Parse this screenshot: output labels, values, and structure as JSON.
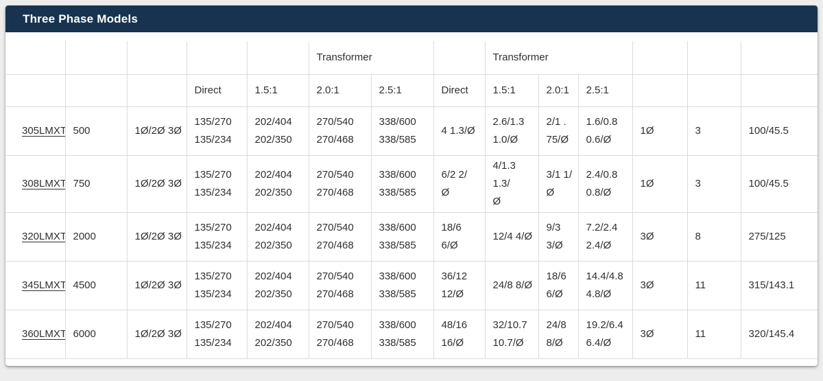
{
  "panel": {
    "title": "Three Phase Models"
  },
  "colors": {
    "header_bg": "#17334f",
    "header_text": "#ffffff",
    "card_bg": "#ffffff",
    "page_bg": "#ededed",
    "table_border": "#dcdcdc",
    "table_text": "#303030"
  },
  "table": {
    "group_header": {
      "transformer": "Transformer"
    },
    "sub_header": {
      "direct": "Direct",
      "ratio_1_5": "1.5:1",
      "ratio_2_0": "2.0:1",
      "ratio_2_5": "2.5:1"
    },
    "rows": [
      [
        "305LMXT",
        "500",
        "1Ø/2Ø 3Ø",
        [
          "135/270",
          "135/234"
        ],
        [
          "202/404",
          "202/350"
        ],
        [
          "270/540",
          "270/468"
        ],
        [
          "338/600",
          "338/585"
        ],
        "4 1.3/Ø",
        [
          "2.6/1.3",
          "1.0/Ø"
        ],
        [
          "2/1 .",
          "75/Ø"
        ],
        [
          "1.6/0.8",
          "0.6/Ø"
        ],
        "1Ø",
        "3",
        "100/45.5"
      ],
      [
        "308LMXT",
        "750",
        "1Ø/2Ø 3Ø",
        [
          "135/270",
          "135/234"
        ],
        [
          "202/404",
          "202/350"
        ],
        [
          "270/540",
          "270/468"
        ],
        [
          "338/600",
          "338/585"
        ],
        [
          "6/2 2/",
          "Ø"
        ],
        [
          "4/1.3 1.3/",
          "Ø"
        ],
        [
          "3/1 1/",
          "Ø"
        ],
        [
          "2.4/0.8",
          "0.8/Ø"
        ],
        "1Ø",
        "3",
        "100/45.5"
      ],
      [
        "320LMXT",
        "2000",
        "1Ø/2Ø 3Ø",
        [
          "135/270",
          "135/234"
        ],
        [
          "202/404",
          "202/350"
        ],
        [
          "270/540",
          "270/468"
        ],
        [
          "338/600",
          "338/585"
        ],
        [
          "18/6",
          "6/Ø"
        ],
        "12/4 4/Ø",
        [
          "9/3",
          "3/Ø"
        ],
        [
          "7.2/2.4",
          "2.4/Ø"
        ],
        "3Ø",
        "8",
        "275/125"
      ],
      [
        "345LMXT",
        "4500",
        "1Ø/2Ø 3Ø",
        [
          "135/270",
          "135/234"
        ],
        [
          "202/404",
          "202/350"
        ],
        [
          "270/540",
          "270/468"
        ],
        [
          "338/600",
          "338/585"
        ],
        [
          "36/12",
          "12/Ø"
        ],
        "24/8 8/Ø",
        [
          "18/6",
          "6/Ø"
        ],
        [
          "14.4/4.8",
          "4.8/Ø"
        ],
        "3Ø",
        "11",
        "315/143.1"
      ],
      [
        "360LMXT",
        "6000",
        "1Ø/2Ø 3Ø",
        [
          "135/270",
          "135/234"
        ],
        [
          "202/404",
          "202/350"
        ],
        [
          "270/540",
          "270/468"
        ],
        [
          "338/600",
          "338/585"
        ],
        [
          "48/16",
          "16/Ø"
        ],
        [
          "32/10.7",
          "10.7/Ø"
        ],
        [
          "24/8",
          "8/Ø"
        ],
        [
          "19.2/6.4",
          "6.4/Ø"
        ],
        "3Ø",
        "11",
        "320/145.4"
      ]
    ]
  }
}
